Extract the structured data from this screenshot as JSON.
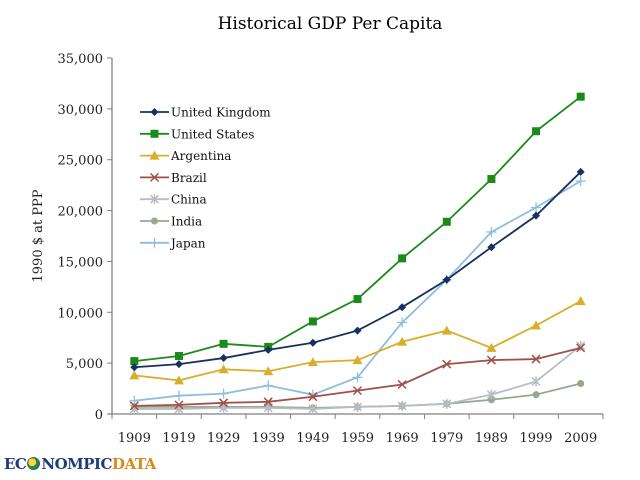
{
  "chart_data": {
    "type": "line",
    "title": "Historical GDP Per Capita",
    "xlabel": "",
    "ylabel": "1990 $ at PPP",
    "categories": [
      "1909",
      "1919",
      "1929",
      "1939",
      "1949",
      "1959",
      "1969",
      "1979",
      "1989",
      "1999",
      "2009"
    ],
    "ylim": [
      0,
      35000
    ],
    "yticks": [
      0,
      5000,
      10000,
      15000,
      20000,
      25000,
      30000,
      35000
    ],
    "ytick_labels": [
      "0",
      "5,000",
      "10,000",
      "15,000",
      "20,000",
      "25,000",
      "30,000",
      "35,000"
    ],
    "grid": false,
    "legend_position": "top-left",
    "series": [
      {
        "name": "United Kingdom",
        "color": "#17305f",
        "marker": "diamond",
        "values": [
          4600,
          4900,
          5500,
          6300,
          7000,
          8200,
          10500,
          13200,
          16400,
          19500,
          23800
        ]
      },
      {
        "name": "United States",
        "color": "#1a8a1a",
        "marker": "square",
        "values": [
          5200,
          5700,
          6900,
          6600,
          9100,
          11300,
          15300,
          18900,
          23100,
          27800,
          31200
        ]
      },
      {
        "name": "Argentina",
        "color": "#d9ae2a",
        "marker": "triangle",
        "values": [
          3800,
          3300,
          4400,
          4200,
          5100,
          5300,
          7100,
          8200,
          6500,
          8700,
          11100
        ]
      },
      {
        "name": "Brazil",
        "color": "#a0504a",
        "marker": "x",
        "values": [
          800,
          900,
          1100,
          1200,
          1700,
          2300,
          2900,
          4900,
          5300,
          5400,
          6500
        ]
      },
      {
        "name": "China",
        "color": "#b8bcc4",
        "marker": "star",
        "values": [
          500,
          500,
          600,
          600,
          500,
          700,
          800,
          1000,
          1900,
          3200,
          6700
        ]
      },
      {
        "name": "India",
        "color": "#98a88c",
        "marker": "circle",
        "values": [
          700,
          700,
          700,
          700,
          600,
          700,
          800,
          1000,
          1400,
          1900,
          3000
        ]
      },
      {
        "name": "Japan",
        "color": "#8fbde0",
        "marker": "plus",
        "values": [
          1300,
          1800,
          2000,
          2800,
          1900,
          3600,
          9000,
          13200,
          17900,
          20300,
          22900
        ]
      }
    ]
  },
  "logo": {
    "part1": "EC",
    "part2": "NOMPIC",
    "part3": "DATA"
  }
}
